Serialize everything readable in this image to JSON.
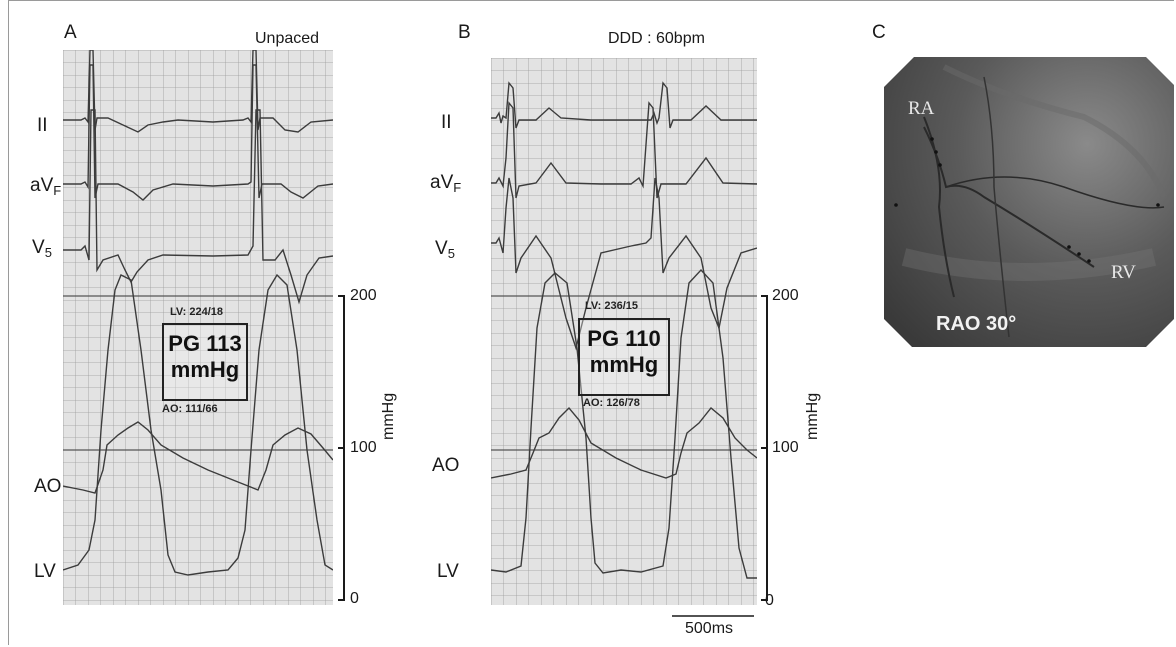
{
  "panels": {
    "a": {
      "letter": "A",
      "mode": "Unpaced",
      "lv_pressure": "LV: 224/18",
      "pg_line1": "PG 113",
      "pg_line2": "mmHg",
      "ao_pressure": "AO: 111/66"
    },
    "b": {
      "letter": "B",
      "mode": "DDD : 60bpm",
      "lv_pressure": "LV: 236/15",
      "pg_line1": "PG 110",
      "pg_line2": "mmHg",
      "ao_pressure": "AO: 126/78"
    },
    "c": {
      "letter": "C",
      "ra_label": "RA",
      "rv_label": "RV",
      "view_label": "RAO 30°"
    }
  },
  "leads": {
    "ii": "II",
    "avf_base": "aV",
    "avf_sub": "F",
    "v5_base": "V",
    "v5_sub": "5",
    "ao": "AO",
    "lv": "LV"
  },
  "scale": {
    "tick_200": "200",
    "tick_100": "100",
    "tick_0": "0",
    "unit": "mmHg"
  },
  "time_scale": "500ms",
  "colors": {
    "paper": "#e3e3e3",
    "grid": "#9c9c9c",
    "trace": "#3c3c3c",
    "fluoro_bg": "#4a4a4a"
  }
}
